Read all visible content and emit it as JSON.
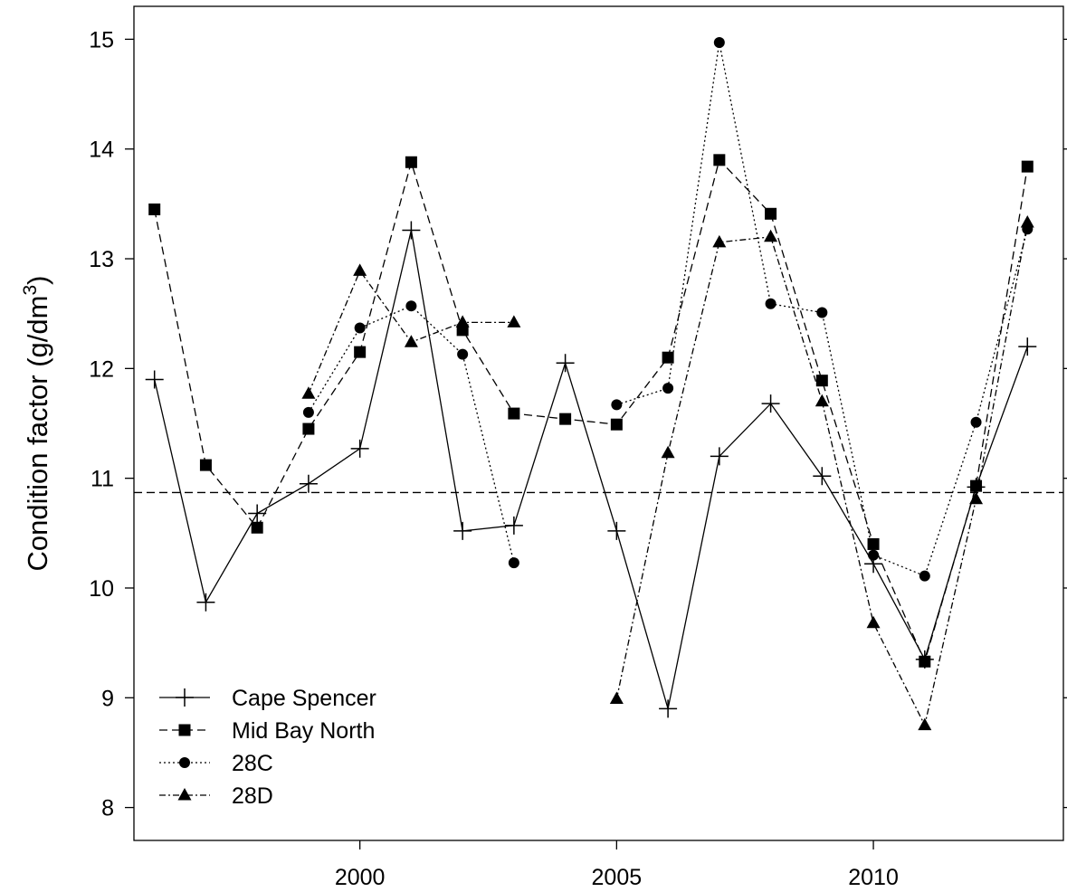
{
  "chart_data": {
    "type": "line",
    "title": "",
    "xlabel": "",
    "ylabel": "Condition factor  (g/dm",
    "ylabel_superscript": "3",
    "ylabel_suffix": ")",
    "xlim": [
      1995.6,
      2013.7
    ],
    "ylim": [
      7.7,
      15.3
    ],
    "xticks": [
      2000,
      2005,
      2010
    ],
    "xtick_labels": [
      "2000",
      "2005",
      "2010"
    ],
    "yticks": [
      8,
      9,
      10,
      11,
      12,
      13,
      14,
      15
    ],
    "ytick_labels": [
      "8",
      "9",
      "10",
      "11",
      "12",
      "13",
      "14",
      "15"
    ],
    "grid": false,
    "legend_position": "bottom-left",
    "reference_line": {
      "y": 10.87,
      "style": "dashed"
    },
    "series": [
      {
        "name": "Cape Spencer",
        "marker": "plus",
        "line_style": "solid",
        "x": [
          1996,
          1997,
          1998,
          1999,
          2000,
          2001,
          2002,
          2003,
          2004,
          2005,
          2006,
          2007,
          2008,
          2009,
          2010,
          2011,
          2012,
          2013
        ],
        "y": [
          11.9,
          9.87,
          10.68,
          10.95,
          11.27,
          13.26,
          10.52,
          10.57,
          12.05,
          10.52,
          8.9,
          11.2,
          11.68,
          11.02,
          10.22,
          9.35,
          10.92,
          12.2
        ]
      },
      {
        "name": "Mid Bay North",
        "marker": "square",
        "line_style": "dashed",
        "x": [
          1996,
          1997,
          1998,
          1999,
          2000,
          2001,
          2002,
          2003,
          2004,
          2005,
          2006,
          2007,
          2008,
          2009,
          2010,
          2011,
          2012,
          2013
        ],
        "y": [
          13.45,
          11.12,
          10.55,
          11.45,
          12.15,
          13.88,
          12.35,
          11.59,
          11.54,
          11.49,
          12.1,
          13.9,
          13.41,
          11.89,
          10.4,
          9.33,
          10.93,
          13.84
        ]
      },
      {
        "name": "28C",
        "marker": "circle",
        "line_style": "dotted",
        "x": [
          1999,
          2000,
          2001,
          2002,
          2003,
          null,
          2005,
          2006,
          2007,
          2008,
          2009,
          2010,
          2011,
          2012,
          2013
        ],
        "y": [
          11.6,
          12.37,
          12.57,
          12.13,
          10.23,
          null,
          11.67,
          11.82,
          14.97,
          12.59,
          12.51,
          10.3,
          10.11,
          11.51,
          13.27
        ]
      },
      {
        "name": "28D",
        "marker": "triangle",
        "line_style": "dashdot",
        "x": [
          1999,
          2000,
          2001,
          2002,
          2003,
          null,
          2005,
          2006,
          2007,
          2008,
          2009,
          2010,
          2011,
          2012,
          2013
        ],
        "y": [
          11.77,
          12.89,
          12.24,
          12.42,
          12.42,
          null,
          8.99,
          11.23,
          13.15,
          13.2,
          11.7,
          9.68,
          8.75,
          10.81,
          13.33
        ]
      }
    ]
  }
}
